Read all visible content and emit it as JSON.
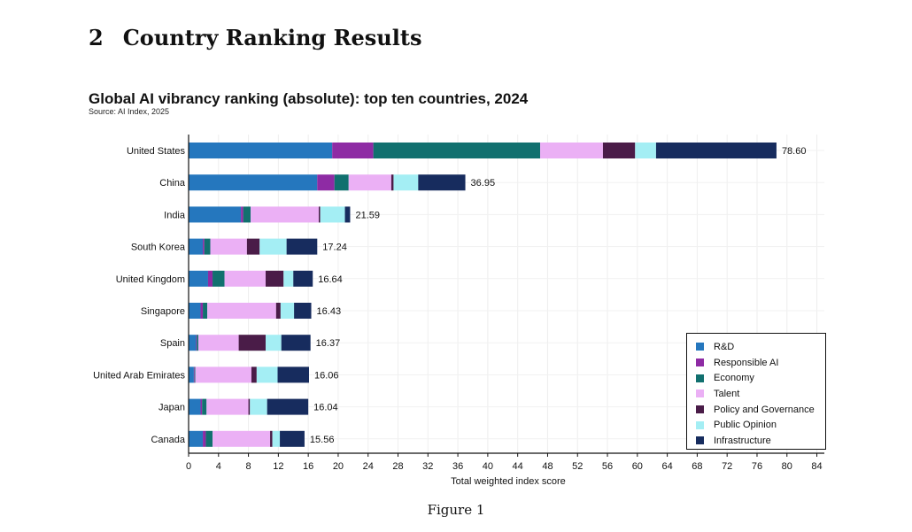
{
  "document": {
    "section_number": "2",
    "section_title": "Country Ranking Results",
    "caption": "Figure 1"
  },
  "chart_data": {
    "type": "bar",
    "orientation": "horizontal",
    "stacked": true,
    "title": "Global AI vibrancy ranking (absolute): top ten countries, 2024",
    "subtitle": "Source: AI Index, 2025",
    "xlabel": "Total weighted index score",
    "ylabel": "",
    "xlim": [
      0,
      85
    ],
    "xticks": [
      0,
      4,
      8,
      12,
      16,
      20,
      24,
      28,
      32,
      36,
      40,
      44,
      48,
      52,
      56,
      60,
      64,
      68,
      72,
      76,
      80,
      84
    ],
    "grid": true,
    "legend_position": "bottom-right",
    "categories": [
      "United States",
      "China",
      "India",
      "South Korea",
      "United Kingdom",
      "Singapore",
      "Spain",
      "United Arab Emirates",
      "Japan",
      "Canada"
    ],
    "totals": [
      "78.60",
      "36.95",
      "21.59",
      "17.24",
      "16.64",
      "16.43",
      "16.37",
      "16.06",
      "16.04",
      "15.56"
    ],
    "series": [
      {
        "name": "R&D",
        "color": "#2577BE",
        "values": [
          19.2,
          17.2,
          7.0,
          1.9,
          2.6,
          1.6,
          1.0,
          0.7,
          1.6,
          1.9
        ]
      },
      {
        "name": "Responsible AI",
        "color": "#8E2BA4",
        "values": [
          5.5,
          2.3,
          0.3,
          0.2,
          0.6,
          0.3,
          0.1,
          0.1,
          0.2,
          0.4
        ]
      },
      {
        "name": "Economy",
        "color": "#11706F",
        "values": [
          22.3,
          1.9,
          1.0,
          0.8,
          1.6,
          0.6,
          0.2,
          0.1,
          0.6,
          0.9
        ]
      },
      {
        "name": "Talent",
        "color": "#EBB0F5",
        "values": [
          8.4,
          5.7,
          9.1,
          4.9,
          5.5,
          9.2,
          5.4,
          7.5,
          5.6,
          7.7
        ]
      },
      {
        "name": "Policy and Governance",
        "color": "#4A1C48",
        "values": [
          4.3,
          0.3,
          0.2,
          1.7,
          2.4,
          0.6,
          3.6,
          0.7,
          0.2,
          0.3
        ]
      },
      {
        "name": "Public Opinion",
        "color": "#A4EEF4",
        "values": [
          2.8,
          3.3,
          3.3,
          3.6,
          1.3,
          1.8,
          2.1,
          2.8,
          2.3,
          1.0
        ]
      },
      {
        "name": "Infrastructure",
        "color": "#172C5E",
        "values": [
          16.1,
          6.3,
          0.7,
          4.1,
          2.6,
          2.3,
          3.9,
          4.2,
          5.5,
          3.3
        ]
      }
    ]
  }
}
